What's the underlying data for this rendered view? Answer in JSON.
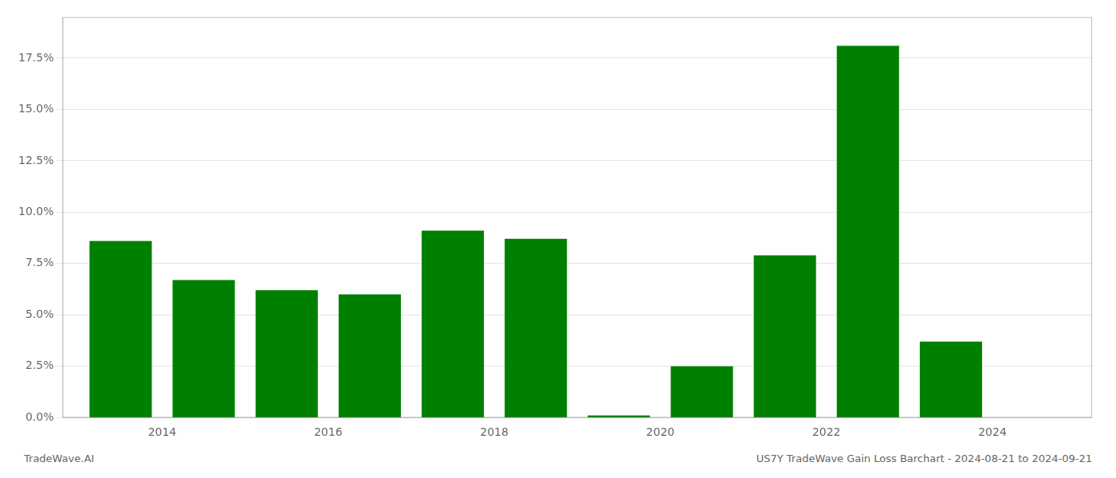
{
  "chart_data": {
    "type": "bar",
    "x": [
      2013,
      2014,
      2015,
      2016,
      2017,
      2018,
      2019,
      2020,
      2021,
      2022,
      2023
    ],
    "values": [
      0.086,
      0.067,
      0.062,
      0.06,
      0.091,
      0.087,
      0.001,
      0.025,
      0.079,
      0.181,
      0.037
    ],
    "color": "#008000",
    "xlim": [
      2012.3,
      2024.7
    ],
    "xticks": [
      {
        "value": 2013.5,
        "label": "2014"
      },
      {
        "value": 2015.5,
        "label": "2016"
      },
      {
        "value": 2017.5,
        "label": "2018"
      },
      {
        "value": 2019.5,
        "label": "2020"
      },
      {
        "value": 2021.5,
        "label": "2022"
      },
      {
        "value": 2023.5,
        "label": "2024"
      }
    ],
    "ylim": [
      0,
      0.195
    ],
    "yticks": [
      {
        "value": 0.0,
        "label": "0.0%"
      },
      {
        "value": 0.025,
        "label": "2.5%"
      },
      {
        "value": 0.05,
        "label": "5.0%"
      },
      {
        "value": 0.075,
        "label": "7.5%"
      },
      {
        "value": 0.1,
        "label": "10.0%"
      },
      {
        "value": 0.125,
        "label": "12.5%"
      },
      {
        "value": 0.15,
        "label": "15.0%"
      },
      {
        "value": 0.175,
        "label": "17.5%"
      }
    ],
    "grid": true,
    "annotations": [
      "TradeWave.AI",
      "US7Y TradeWave Gain Loss Barchart - 2024-08-21 to 2024-09-21"
    ]
  }
}
